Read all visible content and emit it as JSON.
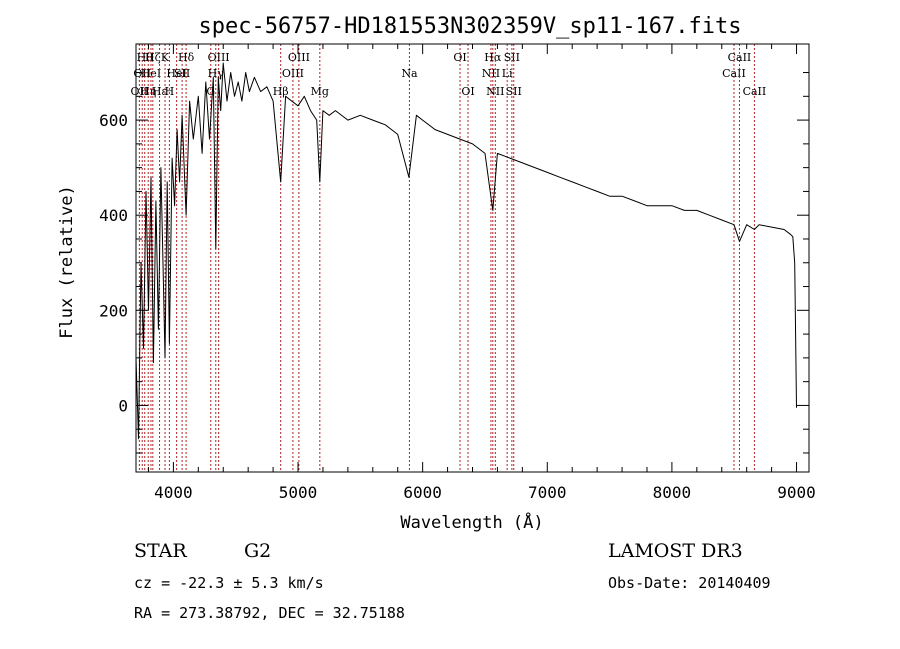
{
  "chart_data": {
    "type": "line",
    "title": "spec-56757-HD181553N302359V_sp11-167.fits",
    "xlabel": "Wavelength (Å)",
    "ylabel": "Flux (relative)",
    "xlim": [
      3700,
      9100
    ],
    "ylim": [
      -140,
      760
    ],
    "x_ticks": [
      4000,
      5000,
      6000,
      7000,
      8000,
      9000
    ],
    "x_tick_labels": [
      "4000",
      "5000",
      "6000",
      "7000",
      "8000",
      "9000"
    ],
    "y_ticks": [
      0,
      200,
      400,
      600
    ],
    "y_tick_labels": [
      "0",
      "200",
      "400",
      "600"
    ],
    "grid": false,
    "series": [
      {
        "name": "flux",
        "x": [
          3700,
          3720,
          3740,
          3760,
          3780,
          3800,
          3820,
          3840,
          3860,
          3880,
          3900,
          3920,
          3933,
          3950,
          3968,
          3990,
          4010,
          4030,
          4050,
          4070,
          4102,
          4130,
          4160,
          4200,
          4230,
          4260,
          4290,
          4320,
          4340,
          4360,
          4380,
          4400,
          4430,
          4460,
          4490,
          4520,
          4550,
          4580,
          4610,
          4650,
          4700,
          4750,
          4800,
          4861,
          4900,
          4950,
          5000,
          5050,
          5100,
          5150,
          5175,
          5200,
          5250,
          5300,
          5400,
          5500,
          5600,
          5700,
          5800,
          5890,
          5950,
          6000,
          6100,
          6200,
          6300,
          6400,
          6500,
          6563,
          6600,
          6700,
          6800,
          6900,
          7000,
          7100,
          7200,
          7300,
          7400,
          7500,
          7600,
          7700,
          7800,
          7900,
          8000,
          8100,
          8200,
          8300,
          8400,
          8498,
          8542,
          8600,
          8662,
          8700,
          8800,
          8900,
          8950,
          8970,
          8985,
          8990,
          9000
        ],
        "values": [
          100,
          -70,
          300,
          120,
          450,
          200,
          480,
          90,
          430,
          160,
          500,
          260,
          100,
          470,
          130,
          520,
          420,
          580,
          470,
          610,
          400,
          640,
          560,
          650,
          530,
          680,
          560,
          690,
          330,
          690,
          620,
          720,
          640,
          700,
          650,
          680,
          640,
          700,
          660,
          690,
          660,
          670,
          640,
          470,
          650,
          640,
          630,
          650,
          620,
          600,
          470,
          620,
          610,
          620,
          600,
          610,
          600,
          590,
          570,
          480,
          610,
          600,
          580,
          570,
          560,
          550,
          530,
          410,
          530,
          520,
          510,
          500,
          490,
          480,
          470,
          460,
          450,
          440,
          440,
          430,
          420,
          420,
          420,
          410,
          410,
          400,
          390,
          380,
          345,
          380,
          370,
          380,
          375,
          370,
          360,
          355,
          300,
          200,
          -5
        ]
      }
    ],
    "line_labels": [
      {
        "wavelength": 3727,
        "label": "OII",
        "row": 2
      },
      {
        "wavelength": 3750,
        "label": "OII",
        "row": 1
      },
      {
        "wavelength": 3770,
        "label": "Hθ",
        "row": 0
      },
      {
        "wavelength": 3798,
        "label": "Hη",
        "row": 2
      },
      {
        "wavelength": 3820,
        "label": "HeI",
        "row": 1
      },
      {
        "wavelength": 3835,
        "label": "Hζ",
        "row": 0
      },
      {
        "wavelength": 3889,
        "label": "Hε",
        "row": 2
      },
      {
        "wavelength": 3933,
        "label": "K",
        "row": 0
      },
      {
        "wavelength": 3968,
        "label": "H",
        "row": 2
      },
      {
        "wavelength": 4026,
        "label": "HeI",
        "row": 1
      },
      {
        "wavelength": 4070,
        "label": "SII",
        "row": 1
      },
      {
        "wavelength": 4102,
        "label": "Hδ",
        "row": 0
      },
      {
        "wavelength": 4300,
        "label": "G",
        "row": 2
      },
      {
        "wavelength": 4340,
        "label": "Hγ",
        "row": 1
      },
      {
        "wavelength": 4363,
        "label": "OIII",
        "row": 0
      },
      {
        "wavelength": 4861,
        "label": "Hβ",
        "row": 2
      },
      {
        "wavelength": 4959,
        "label": "OIII",
        "row": 1
      },
      {
        "wavelength": 5007,
        "label": "OIII",
        "row": 0
      },
      {
        "wavelength": 5175,
        "label": "Mg",
        "row": 2
      },
      {
        "wavelength": 5894,
        "label": "Na",
        "row": 1
      },
      {
        "wavelength": 6300,
        "label": "OI",
        "row": 0
      },
      {
        "wavelength": 6364,
        "label": "OI",
        "row": 2
      },
      {
        "wavelength": 6548,
        "label": "NII",
        "row": 1
      },
      {
        "wavelength": 6563,
        "label": "Hα",
        "row": 0
      },
      {
        "wavelength": 6583,
        "label": "NII",
        "row": 2
      },
      {
        "wavelength": 6678,
        "label": "Li",
        "row": 1
      },
      {
        "wavelength": 6716,
        "label": "SII",
        "row": 0
      },
      {
        "wavelength": 6731,
        "label": "SII",
        "row": 2
      },
      {
        "wavelength": 8498,
        "label": "CaII",
        "row": 1
      },
      {
        "wavelength": 8542,
        "label": "CaII",
        "row": 0
      },
      {
        "wavelength": 8662,
        "label": "CaII",
        "row": 2
      }
    ]
  },
  "info": {
    "object_class": "STAR",
    "subclass": "G2",
    "survey": "LAMOST DR3",
    "redshift": "cz = -22.3 ± 5.3 km/s",
    "obs_date": "Obs-Date: 20140409",
    "coords": "RA = 273.38792, DEC =  32.75188"
  },
  "colors": {
    "line_marker": "#b22222",
    "spectrum": "#000000",
    "axis": "#000000"
  }
}
